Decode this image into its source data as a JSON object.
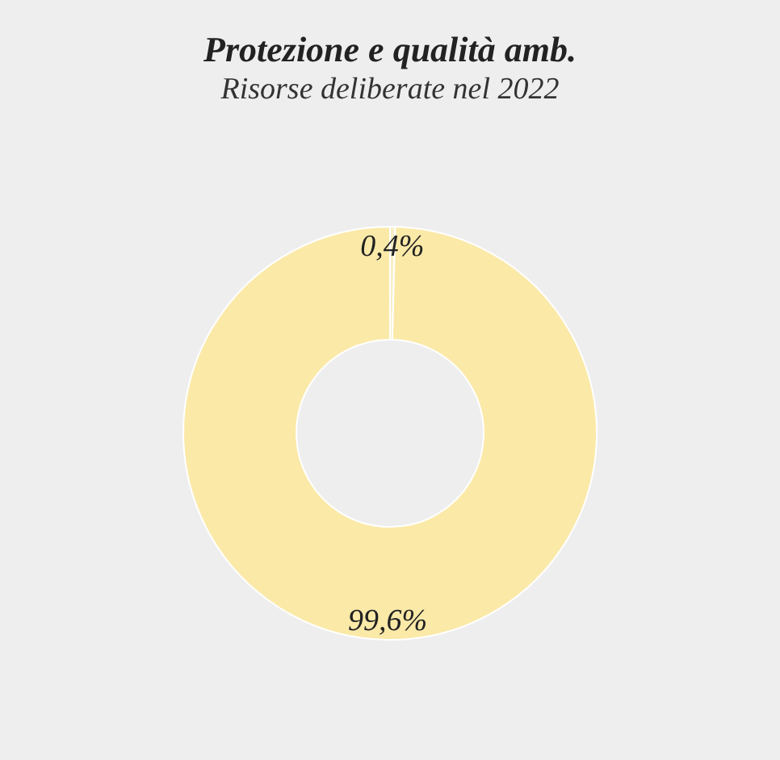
{
  "chart_data": {
    "type": "donut",
    "title": "Protezione e qualità amb.",
    "subtitle": "Risorse deliberate nel 2022",
    "categories": [
      null,
      null
    ],
    "values": [
      0.4,
      99.6
    ],
    "colors": [
      "#f8efc8",
      "#fbe9a8"
    ],
    "value_labels": [
      "0,4%",
      "99,6%"
    ],
    "legend": false
  }
}
